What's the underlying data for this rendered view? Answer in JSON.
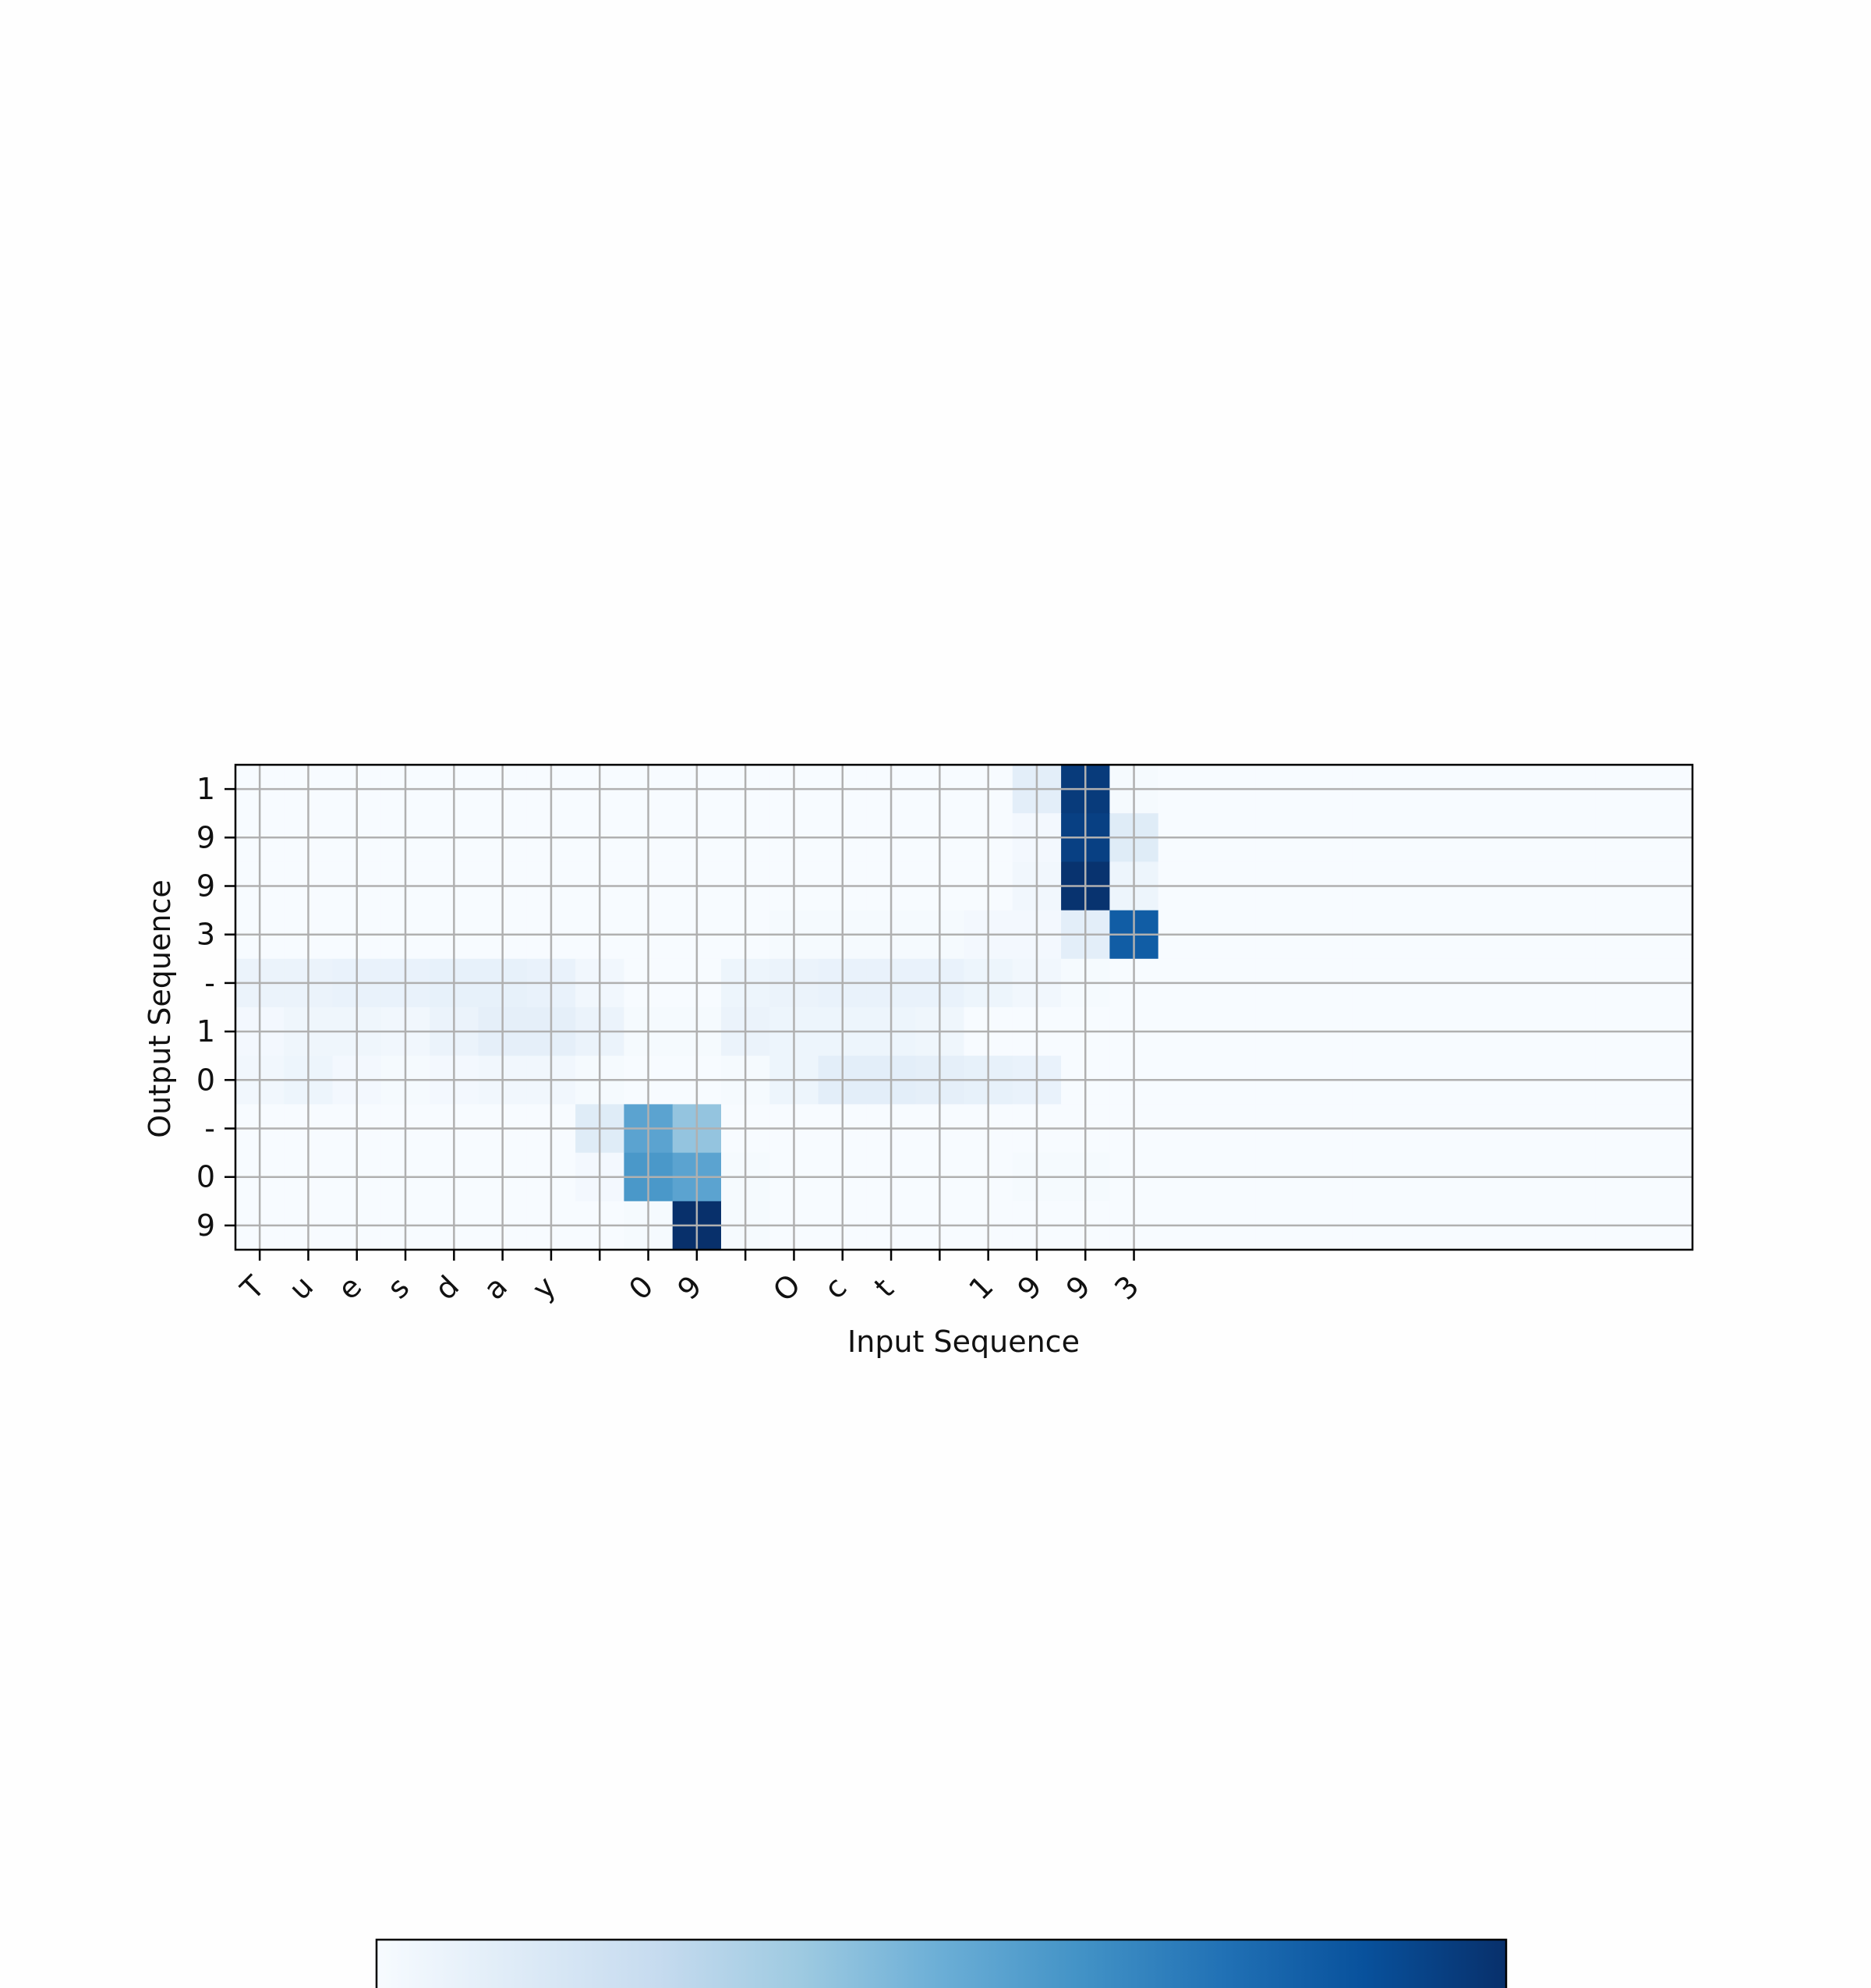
{
  "chart_data": {
    "type": "heatmap",
    "title": "",
    "xlabel": "Input Sequence",
    "ylabel": "Output Sequence",
    "x_tick_labels": [
      "T",
      "u",
      "e",
      "s",
      "d",
      "a",
      "y",
      " ",
      "0",
      "9",
      " ",
      "O",
      "c",
      "t",
      " ",
      "1",
      "9",
      "9",
      "3"
    ],
    "n_columns": 30,
    "y_tick_labels": [
      "1",
      "9",
      "9",
      "3",
      "-",
      "1",
      "0",
      "-",
      "0",
      "9"
    ],
    "colormap": "Blues",
    "value_range": [
      0,
      1
    ],
    "grid": true,
    "colorbar": true,
    "values": [
      [
        0,
        0,
        0,
        0,
        0,
        0,
        0,
        0,
        0,
        0,
        0,
        0,
        0,
        0,
        0,
        0,
        0.1,
        0.96,
        0.01,
        0,
        0,
        0,
        0,
        0,
        0,
        0,
        0,
        0,
        0,
        0
      ],
      [
        0,
        0,
        0,
        0,
        0,
        0,
        0,
        0,
        0,
        0,
        0,
        0,
        0,
        0,
        0,
        0,
        0.02,
        0.94,
        0.12,
        0,
        0,
        0,
        0,
        0,
        0,
        0,
        0,
        0,
        0,
        0
      ],
      [
        0,
        0,
        0,
        0,
        0,
        0,
        0,
        0,
        0,
        0,
        0,
        0,
        0,
        0,
        0,
        0,
        0.03,
        0.99,
        0.05,
        0,
        0,
        0,
        0,
        0,
        0,
        0,
        0,
        0,
        0,
        0
      ],
      [
        0,
        0,
        0,
        0,
        0,
        0,
        0,
        0,
        0,
        0,
        0,
        0.01,
        0.01,
        0.01,
        0.01,
        0.02,
        0.02,
        0.1,
        0.83,
        0,
        0,
        0,
        0,
        0,
        0,
        0,
        0,
        0,
        0,
        0
      ],
      [
        0.06,
        0.06,
        0.07,
        0.07,
        0.08,
        0.08,
        0.07,
        0.03,
        0,
        0,
        0.05,
        0.06,
        0.07,
        0.07,
        0.07,
        0.05,
        0.03,
        0.01,
        0,
        0,
        0,
        0,
        0,
        0,
        0,
        0,
        0,
        0,
        0,
        0
      ],
      [
        0.02,
        0.04,
        0.04,
        0.03,
        0.06,
        0.09,
        0.09,
        0.06,
        0.01,
        0.01,
        0.06,
        0.05,
        0.05,
        0.05,
        0.04,
        0,
        0,
        0,
        0,
        0,
        0,
        0,
        0,
        0,
        0,
        0,
        0,
        0,
        0,
        0
      ],
      [
        0.03,
        0.05,
        0.02,
        0.01,
        0.02,
        0.03,
        0.03,
        0.01,
        0,
        0,
        0.01,
        0.05,
        0.1,
        0.1,
        0.09,
        0.08,
        0.07,
        0,
        0,
        0,
        0,
        0,
        0,
        0,
        0,
        0,
        0,
        0,
        0,
        0
      ],
      [
        0,
        0,
        0,
        0,
        0,
        0,
        0,
        0.12,
        0.55,
        0.4,
        0,
        0,
        0,
        0,
        0,
        0,
        0,
        0,
        0,
        0,
        0,
        0,
        0,
        0,
        0,
        0,
        0,
        0,
        0,
        0
      ],
      [
        0,
        0,
        0,
        0,
        0,
        0,
        0,
        0.02,
        0.6,
        0.55,
        0.01,
        0,
        0,
        0,
        0,
        0,
        0.01,
        0.01,
        0,
        0,
        0,
        0,
        0,
        0,
        0,
        0,
        0,
        0,
        0,
        0
      ],
      [
        0,
        0,
        0,
        0,
        0,
        0,
        0,
        0,
        0.01,
        1.0,
        0.01,
        0,
        0,
        0,
        0,
        0,
        0,
        0,
        0,
        0,
        0,
        0,
        0,
        0,
        0,
        0,
        0,
        0,
        0,
        0
      ]
    ]
  }
}
